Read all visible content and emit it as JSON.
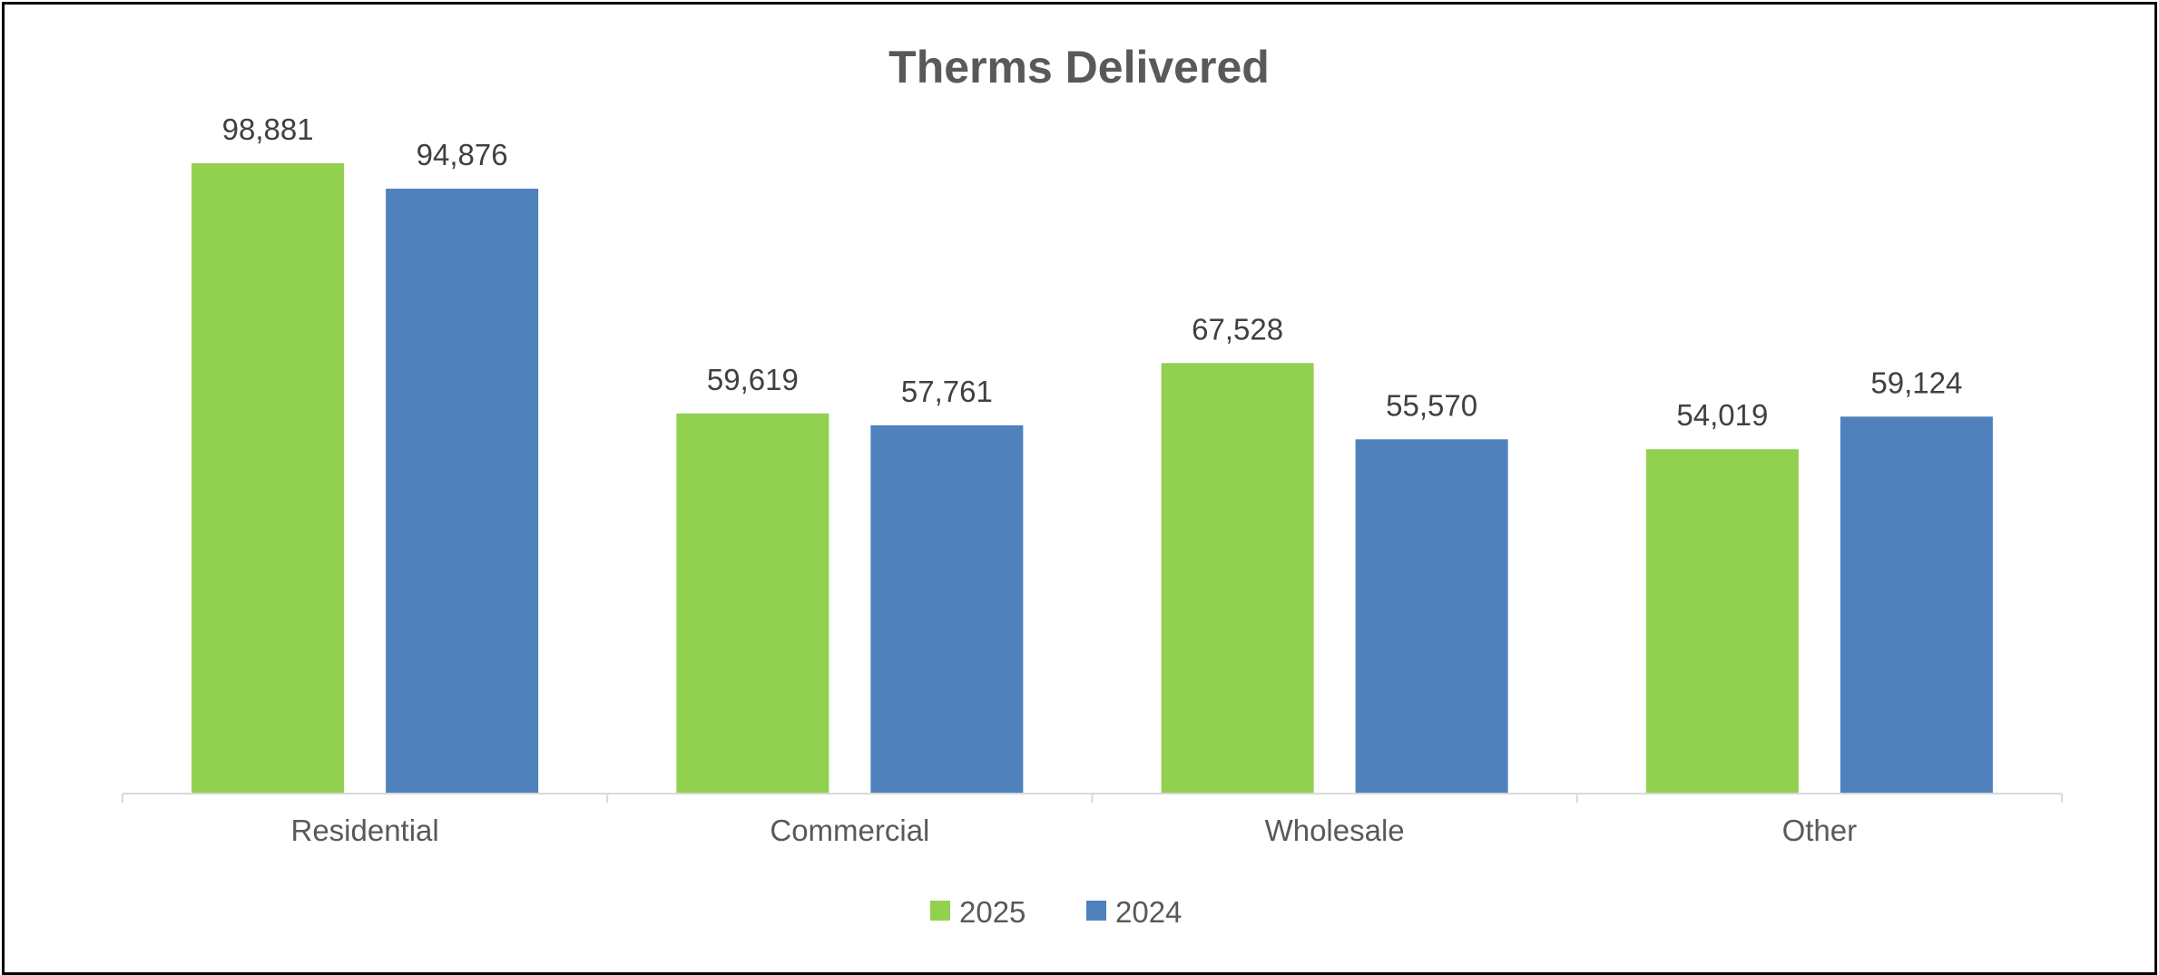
{
  "chart_data": {
    "type": "bar",
    "title": "Therms Delivered",
    "xlabel": "",
    "ylabel": "",
    "categories": [
      "Residential",
      "Commercial",
      "Wholesale",
      "Other"
    ],
    "series": [
      {
        "name": "2025",
        "color": "#92d050",
        "values": [
          98881,
          59619,
          67528,
          54019
        ],
        "labels": [
          "98,881",
          "59,619",
          "67,528",
          "54,019"
        ]
      },
      {
        "name": "2024",
        "color": "#4f81bd",
        "values": [
          94876,
          57761,
          55570,
          59124
        ],
        "labels": [
          "94,876",
          "57,761",
          "55,570",
          "59,124"
        ]
      }
    ],
    "ylim": [
      0,
      100000
    ],
    "grid": false,
    "legend": "bottom-center"
  }
}
